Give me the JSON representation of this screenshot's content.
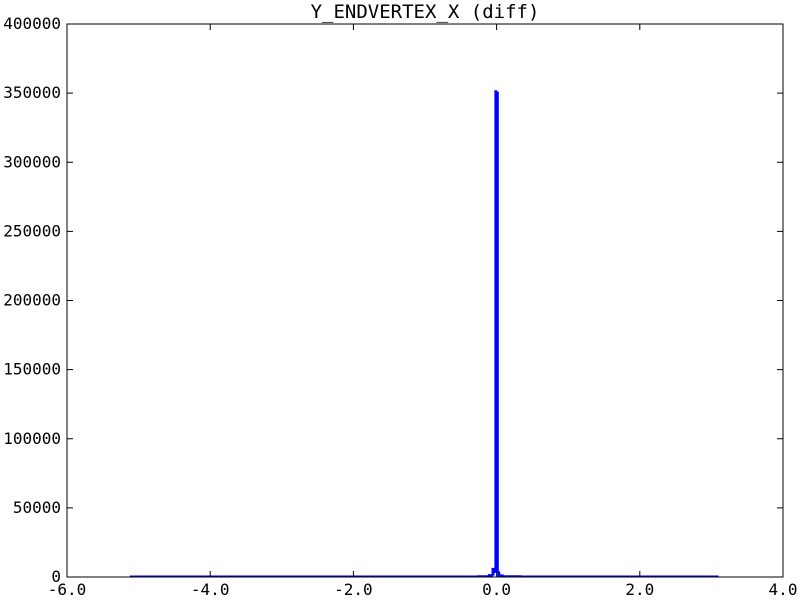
{
  "chart_data": {
    "type": "bar",
    "title": "Y_ENDVERTEX_X (diff)",
    "xlabel": "",
    "ylabel": "",
    "xlim": [
      -6.0,
      4.0
    ],
    "ylim": [
      0,
      400000
    ],
    "x_ticks": [
      -6.0,
      -4.0,
      -2.0,
      0.0,
      2.0,
      4.0
    ],
    "x_tick_labels": [
      "-6.0",
      "-4.0",
      "-2.0",
      "0.0",
      "2.0",
      "4.0"
    ],
    "y_ticks": [
      0,
      50000,
      100000,
      150000,
      200000,
      250000,
      300000,
      350000,
      400000
    ],
    "y_tick_labels": [
      "0",
      "50000",
      "100000",
      "150000",
      "200000",
      "250000",
      "300000",
      "350000",
      "400000"
    ],
    "grid": false,
    "legend": "none",
    "series_color": "#0000ff",
    "histogram": {
      "type": "step",
      "bin_left_edges": [
        -5.1,
        -0.25,
        -0.1,
        -0.05,
        -0.03,
        -0.01,
        0.01,
        0.03,
        0.05,
        0.1,
        0.35
      ],
      "bin_right_edges": [
        -0.25,
        -0.1,
        -0.05,
        -0.03,
        -0.01,
        0.01,
        0.03,
        0.05,
        0.1,
        0.35,
        3.1
      ],
      "values": [
        30,
        200,
        1000,
        5500,
        4000,
        351000,
        4000,
        1500,
        800,
        150,
        30
      ]
    }
  }
}
